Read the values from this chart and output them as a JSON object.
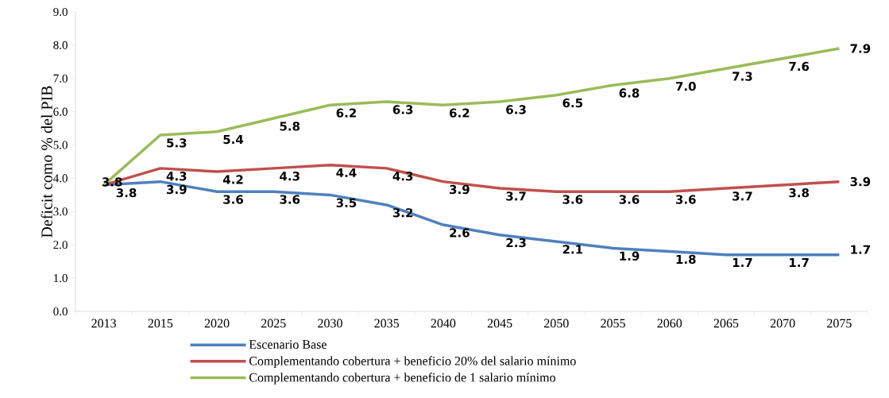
{
  "chart_data": {
    "type": "line",
    "ylabel": "Deficit como % del PIB",
    "categories": [
      "2013",
      "2015",
      "2020",
      "2025",
      "2030",
      "2035",
      "2040",
      "2045",
      "2050",
      "2055",
      "2060",
      "2065",
      "2070",
      "2075"
    ],
    "series": [
      {
        "name": "Escenario Base",
        "color": "#4f81bd",
        "values": [
          3.8,
          3.9,
          3.6,
          3.6,
          3.5,
          3.2,
          2.6,
          2.3,
          2.1,
          1.9,
          1.8,
          1.7,
          1.7,
          1.7
        ],
        "value_labels": [
          "3.8",
          "3.9",
          "3.6",
          "3.6",
          "3.5",
          "3.2",
          "2.6",
          "2.3",
          "2.1",
          "1.9",
          "1.8",
          "1.7",
          "1.7",
          "1.7"
        ]
      },
      {
        "name": "Complementando cobertura + beneficio 20% del salario mínimo",
        "color": "#c0504d",
        "values": [
          3.8,
          4.3,
          4.2,
          4.3,
          4.4,
          4.3,
          3.9,
          3.7,
          3.6,
          3.6,
          3.6,
          3.7,
          3.8,
          3.9
        ],
        "value_labels": [
          "3.8",
          "4.3",
          "4.2",
          "4.3",
          "4.4",
          "4.3",
          "3.9",
          "3.7",
          "3.6",
          "3.6",
          "3.6",
          "3.7",
          "3.8",
          "3.9"
        ]
      },
      {
        "name": "Complementando cobertura + beneficio de 1 salario mínimo",
        "color": "#9bbb59",
        "values": [
          3.8,
          5.3,
          5.4,
          5.8,
          6.2,
          6.3,
          6.2,
          6.3,
          6.5,
          6.8,
          7.0,
          7.3,
          7.6,
          7.9
        ],
        "value_labels": [
          null,
          "5.3",
          "5.4",
          "5.8",
          "6.2",
          "6.3",
          "6.2",
          "6.3",
          "6.5",
          "6.8",
          "7.0",
          "7.3",
          "7.6",
          "7.9"
        ]
      }
    ],
    "ylim": [
      0,
      9
    ],
    "yticks": [
      {
        "value": 0,
        "label": "0.0"
      },
      {
        "value": 1,
        "label": "1.0"
      },
      {
        "value": 2,
        "label": "2.0"
      },
      {
        "value": 3,
        "label": "3.0"
      },
      {
        "value": 4,
        "label": "4.0"
      },
      {
        "value": 5,
        "label": "5.0"
      },
      {
        "value": 6,
        "label": "6.0"
      },
      {
        "value": 7,
        "label": "7.0"
      },
      {
        "value": 8,
        "label": "8.0"
      },
      {
        "value": 9,
        "label": "9.0"
      }
    ],
    "legend": "bottom"
  }
}
